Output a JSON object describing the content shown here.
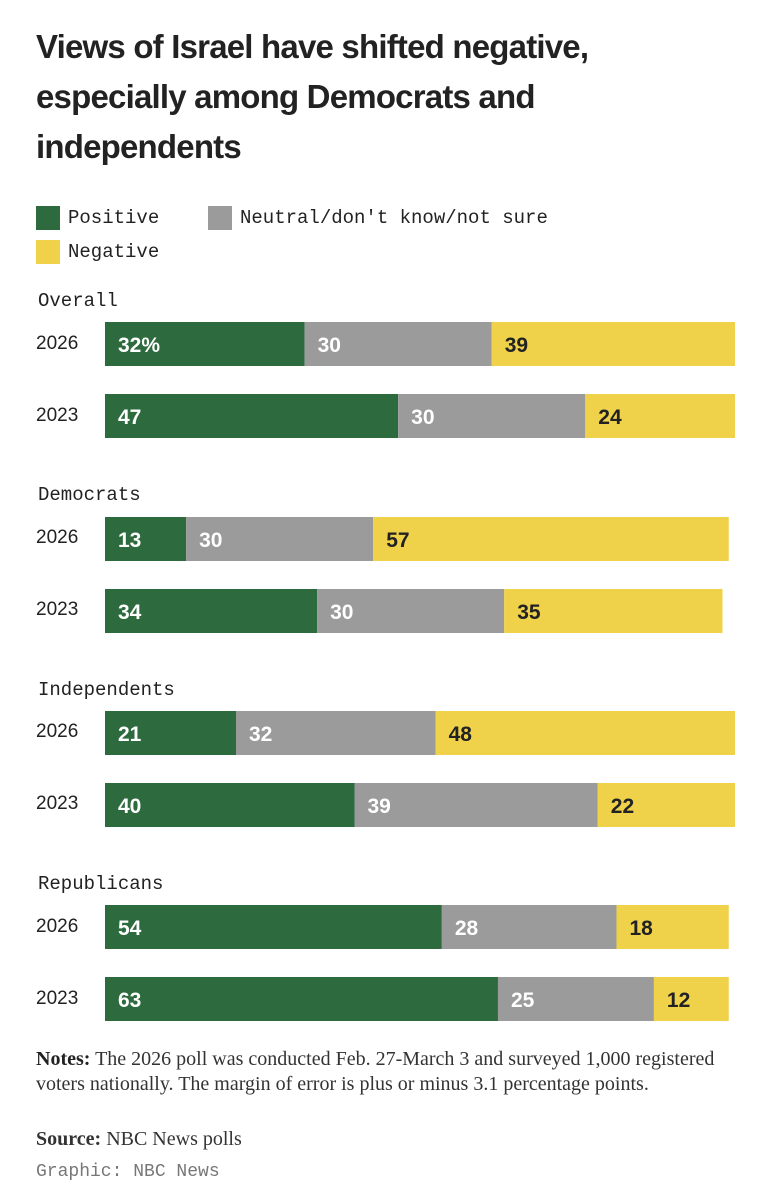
{
  "chart_data": {
    "type": "bar",
    "stacked": true,
    "orientation": "horizontal",
    "title": "Views of Israel have shifted negative, especially among Democrats and independents",
    "legend": [
      {
        "name": "Positive",
        "color": "#2d6a3e"
      },
      {
        "name": "Neutral/don't know/not sure",
        "color": "#9b9b9b"
      },
      {
        "name": "Negative",
        "color": "#efd24a"
      }
    ],
    "groups": [
      {
        "name": "Overall",
        "rows": [
          {
            "year": "2026",
            "values": [
              32,
              30,
              39
            ],
            "labels": [
              "32%",
              "30",
              "39"
            ]
          },
          {
            "year": "2023",
            "values": [
              47,
              30,
              24
            ],
            "labels": [
              "47",
              "30",
              "24"
            ]
          }
        ]
      },
      {
        "name": "Democrats",
        "rows": [
          {
            "year": "2026",
            "values": [
              13,
              30,
              57
            ],
            "labels": [
              "13",
              "30",
              "57"
            ]
          },
          {
            "year": "2023",
            "values": [
              34,
              30,
              35
            ],
            "labels": [
              "34",
              "30",
              "35"
            ]
          }
        ]
      },
      {
        "name": "Independents",
        "rows": [
          {
            "year": "2026",
            "values": [
              21,
              32,
              48
            ],
            "labels": [
              "21",
              "32",
              "48"
            ]
          },
          {
            "year": "2023",
            "values": [
              40,
              39,
              22
            ],
            "labels": [
              "40",
              "39",
              "22"
            ]
          }
        ]
      },
      {
        "name": "Republicans",
        "rows": [
          {
            "year": "2026",
            "values": [
              54,
              28,
              18
            ],
            "labels": [
              "54",
              "28",
              "18"
            ]
          },
          {
            "year": "2023",
            "values": [
              63,
              25,
              12
            ],
            "labels": [
              "63",
              "25",
              "12"
            ]
          }
        ]
      }
    ],
    "xlim": [
      0,
      101
    ]
  },
  "notes": {
    "label": "Notes:",
    "text": "The 2026 poll was conducted Feb. 27-March 3 and surveyed 1,000 registered voters nationally. The margin of error is plus or minus 3.1 percentage points."
  },
  "source": {
    "label": "Source:",
    "text": "NBC News polls"
  },
  "credit": "Graphic: NBC News"
}
